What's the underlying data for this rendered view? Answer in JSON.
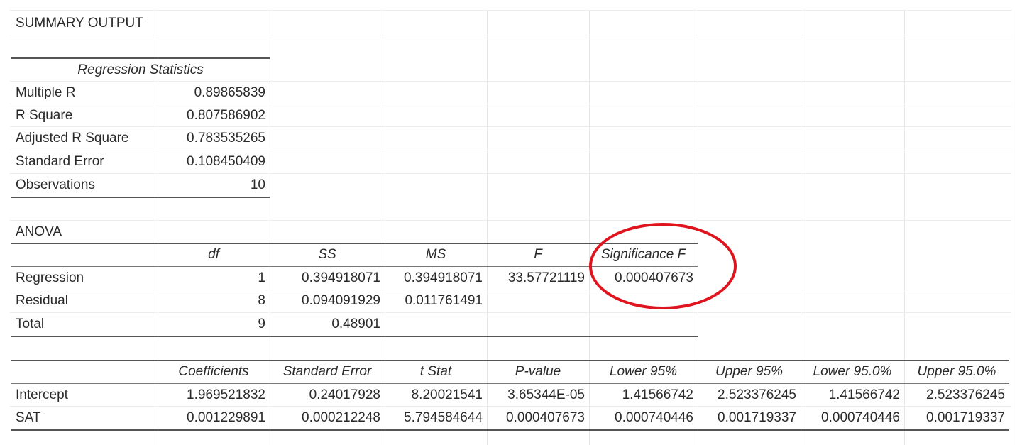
{
  "summary_title": "SUMMARY OUTPUT",
  "regression_statistics": {
    "header": "Regression Statistics",
    "rows": [
      {
        "label": "Multiple R",
        "value": "0.89865839"
      },
      {
        "label": "R Square",
        "value": "0.807586902"
      },
      {
        "label": "Adjusted R Square",
        "value": "0.783535265"
      },
      {
        "label": "Standard Error",
        "value": "0.108450409"
      },
      {
        "label": "Observations",
        "value": "10"
      }
    ]
  },
  "anova": {
    "title": "ANOVA",
    "columns": [
      "df",
      "SS",
      "MS",
      "F",
      "Significance F"
    ],
    "rows": [
      {
        "label": "Regression",
        "df": "1",
        "ss": "0.394918071",
        "ms": "0.394918071",
        "f": "33.57721119",
        "significance_f": "0.000407673"
      },
      {
        "label": "Residual",
        "df": "8",
        "ss": "0.094091929",
        "ms": "0.011761491"
      },
      {
        "label": "Total",
        "df": "9",
        "ss": "0.48901"
      }
    ]
  },
  "coefficients": {
    "columns": [
      "Coefficients",
      "Standard Error",
      "t Stat",
      "P-value",
      "Lower 95%",
      "Upper 95%",
      "Lower 95.0%",
      "Upper 95.0%"
    ],
    "rows": [
      {
        "label": "Intercept",
        "values": [
          "1.969521832",
          "0.24017928",
          "8.20021541",
          "3.65344E-05",
          "1.41566742",
          "2.523376245",
          "1.41566742",
          "2.523376245"
        ]
      },
      {
        "label": "SAT",
        "values": [
          "0.001229891",
          "0.000212248",
          "5.794584644",
          "0.000407673",
          "0.000740446",
          "0.001719337",
          "0.000740446",
          "0.001719337"
        ]
      }
    ]
  },
  "colors": {
    "highlight_circle": "#e0141e",
    "gridline": "#e6e6e6",
    "text": "#2a2a2a"
  }
}
